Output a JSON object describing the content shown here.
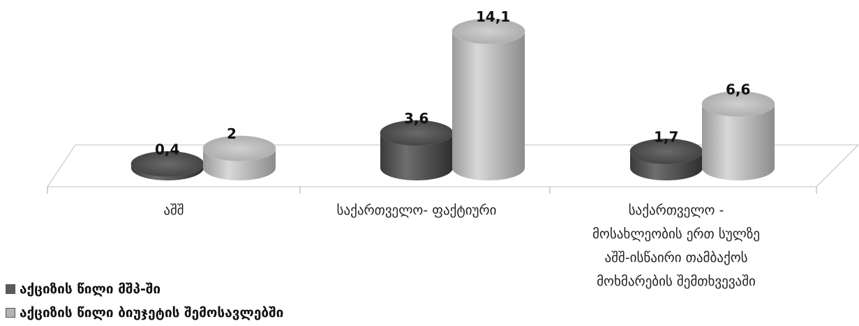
{
  "chart_data": {
    "type": "bar",
    "style": "3d-cylinder",
    "categories": [
      "აშშ",
      "საქართველო- ფაქტიური",
      "საქართველო - მოსახლეობის ერთ სულზე აშშ-ისწაირი თამბაქოს მოხმარების შემთხვევაში"
    ],
    "category_lines": [
      [
        "აშშ"
      ],
      [
        "საქართველო- ფაქტიური"
      ],
      [
        "საქართველო -",
        "მოსახლეობის ერთ სულზე",
        "აშშ-ისწაირი თამბაქოს",
        "მოხმარების შემთხვევაში"
      ]
    ],
    "series": [
      {
        "name": "აქციზის წილი მშპ-ში",
        "values": [
          0.4,
          3.6,
          1.7
        ],
        "value_labels": [
          "0,4",
          "3,6",
          "1,7"
        ],
        "color": "#5a5a5a"
      },
      {
        "name": "აქციზის წილი ბიუჯეტის შემოსავლებში",
        "values": [
          2,
          14.1,
          6.6
        ],
        "value_labels": [
          "2",
          "14,1",
          "6,6"
        ],
        "color": "#b4b4b4"
      }
    ],
    "ylim": [
      0,
      15
    ],
    "legend_position": "bottom-left",
    "grid": false
  }
}
